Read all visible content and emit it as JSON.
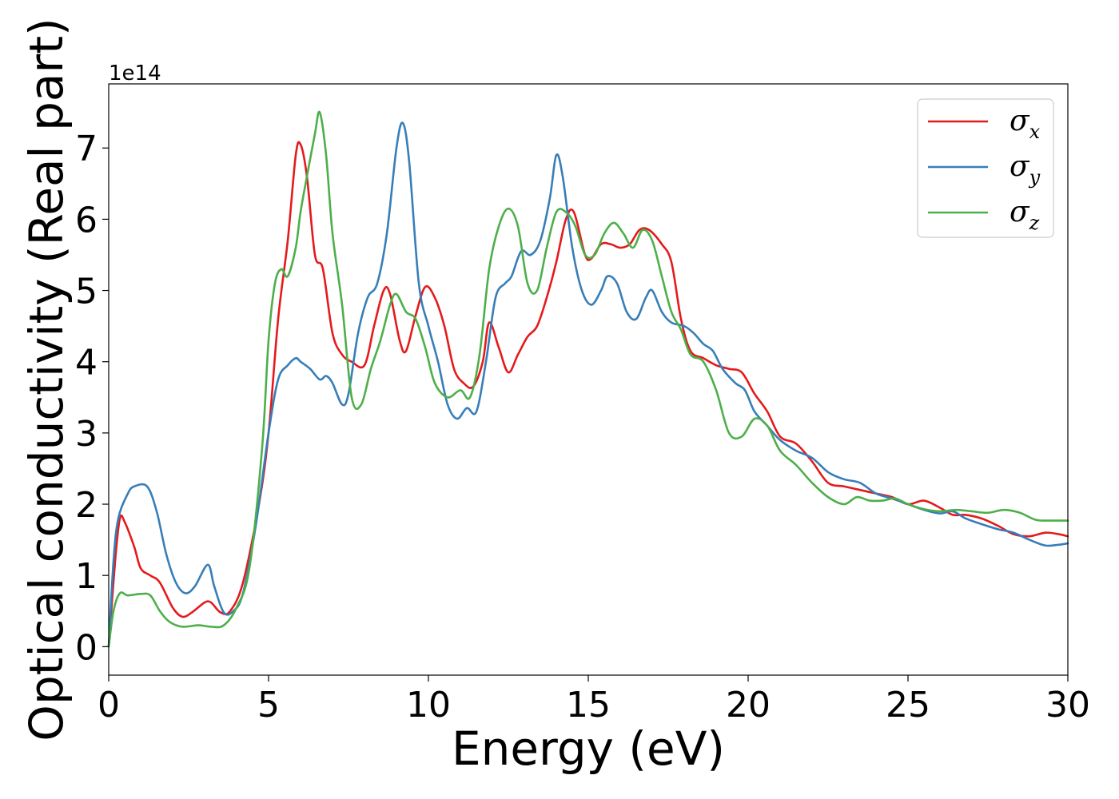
{
  "chart_data": {
    "type": "line",
    "title": "",
    "xlabel": "Energy (eV)",
    "ylabel": "Optical conductivity (Real part)",
    "y_offset_label": "1e14",
    "xlim": [
      0,
      30
    ],
    "ylim": [
      -0.4,
      7.9
    ],
    "x_ticks": [
      0,
      5,
      10,
      15,
      20,
      25,
      30
    ],
    "x_tick_labels": [
      "0",
      "5",
      "10",
      "15",
      "20",
      "25",
      "30"
    ],
    "y_ticks": [
      0,
      1,
      2,
      3,
      4,
      5,
      6,
      7
    ],
    "y_tick_labels": [
      "0",
      "1",
      "2",
      "3",
      "4",
      "5",
      "6",
      "7"
    ],
    "grid": false,
    "legend_position": "top-right",
    "series": [
      {
        "name": "σx",
        "legend_symbol": "σ",
        "legend_sub": "x",
        "color": "#e41a1c",
        "points": [
          [
            0,
            0
          ],
          [
            0.2,
            1.2
          ],
          [
            0.35,
            1.8
          ],
          [
            0.5,
            1.75
          ],
          [
            0.8,
            1.4
          ],
          [
            1.0,
            1.1
          ],
          [
            1.3,
            1.0
          ],
          [
            1.6,
            0.9
          ],
          [
            2.0,
            0.55
          ],
          [
            2.3,
            0.42
          ],
          [
            2.6,
            0.48
          ],
          [
            3.0,
            0.62
          ],
          [
            3.2,
            0.62
          ],
          [
            3.5,
            0.48
          ],
          [
            3.8,
            0.5
          ],
          [
            4.2,
            0.9
          ],
          [
            4.7,
            2.0
          ],
          [
            5.0,
            3.0
          ],
          [
            5.3,
            4.6
          ],
          [
            5.6,
            5.7
          ],
          [
            5.85,
            6.9
          ],
          [
            6.0,
            7.05
          ],
          [
            6.2,
            6.6
          ],
          [
            6.45,
            5.5
          ],
          [
            6.7,
            5.3
          ],
          [
            7.0,
            4.4
          ],
          [
            7.3,
            4.1
          ],
          [
            7.6,
            4.0
          ],
          [
            8.0,
            3.95
          ],
          [
            8.3,
            4.5
          ],
          [
            8.6,
            5.0
          ],
          [
            8.8,
            4.95
          ],
          [
            9.1,
            4.3
          ],
          [
            9.3,
            4.15
          ],
          [
            9.6,
            4.65
          ],
          [
            9.9,
            5.05
          ],
          [
            10.2,
            4.9
          ],
          [
            10.5,
            4.5
          ],
          [
            10.8,
            3.9
          ],
          [
            11.1,
            3.7
          ],
          [
            11.4,
            3.65
          ],
          [
            11.7,
            4.0
          ],
          [
            11.9,
            4.55
          ],
          [
            12.2,
            4.2
          ],
          [
            12.5,
            3.85
          ],
          [
            12.8,
            4.1
          ],
          [
            13.1,
            4.35
          ],
          [
            13.4,
            4.5
          ],
          [
            13.7,
            4.9
          ],
          [
            14.0,
            5.4
          ],
          [
            14.3,
            6.0
          ],
          [
            14.55,
            6.1
          ],
          [
            14.9,
            5.5
          ],
          [
            15.1,
            5.45
          ],
          [
            15.4,
            5.65
          ],
          [
            15.7,
            5.65
          ],
          [
            16.0,
            5.6
          ],
          [
            16.3,
            5.65
          ],
          [
            16.6,
            5.85
          ],
          [
            16.9,
            5.85
          ],
          [
            17.3,
            5.65
          ],
          [
            17.6,
            5.4
          ],
          [
            17.9,
            4.6
          ],
          [
            18.2,
            4.15
          ],
          [
            18.6,
            4.05
          ],
          [
            19.0,
            3.95
          ],
          [
            19.4,
            3.9
          ],
          [
            19.8,
            3.85
          ],
          [
            20.2,
            3.55
          ],
          [
            20.6,
            3.3
          ],
          [
            21.0,
            2.95
          ],
          [
            21.5,
            2.85
          ],
          [
            22.0,
            2.6
          ],
          [
            22.5,
            2.3
          ],
          [
            23.0,
            2.25
          ],
          [
            23.5,
            2.2
          ],
          [
            24.0,
            2.15
          ],
          [
            24.5,
            2.1
          ],
          [
            25.0,
            2.0
          ],
          [
            25.5,
            2.05
          ],
          [
            26.0,
            1.95
          ],
          [
            26.4,
            1.85
          ],
          [
            26.8,
            1.85
          ],
          [
            27.3,
            1.8
          ],
          [
            27.8,
            1.7
          ],
          [
            28.3,
            1.58
          ],
          [
            28.8,
            1.55
          ],
          [
            29.3,
            1.6
          ],
          [
            29.7,
            1.58
          ],
          [
            30.0,
            1.55
          ]
        ]
      },
      {
        "name": "σy",
        "legend_symbol": "σ",
        "legend_sub": "y",
        "color": "#377eb8",
        "points": [
          [
            0,
            0
          ],
          [
            0.15,
            1.2
          ],
          [
            0.3,
            1.8
          ],
          [
            0.6,
            2.15
          ],
          [
            0.8,
            2.25
          ],
          [
            1.2,
            2.25
          ],
          [
            1.5,
            1.9
          ],
          [
            1.8,
            1.3
          ],
          [
            2.1,
            0.9
          ],
          [
            2.4,
            0.75
          ],
          [
            2.7,
            0.85
          ],
          [
            3.1,
            1.15
          ],
          [
            3.3,
            0.85
          ],
          [
            3.6,
            0.48
          ],
          [
            3.9,
            0.5
          ],
          [
            4.2,
            0.75
          ],
          [
            4.6,
            1.7
          ],
          [
            5.0,
            3.0
          ],
          [
            5.3,
            3.75
          ],
          [
            5.6,
            3.95
          ],
          [
            5.85,
            4.05
          ],
          [
            6.0,
            4.0
          ],
          [
            6.3,
            3.9
          ],
          [
            6.6,
            3.75
          ],
          [
            6.8,
            3.8
          ],
          [
            7.0,
            3.7
          ],
          [
            7.3,
            3.4
          ],
          [
            7.5,
            3.55
          ],
          [
            7.8,
            4.4
          ],
          [
            8.1,
            4.9
          ],
          [
            8.4,
            5.1
          ],
          [
            8.7,
            5.8
          ],
          [
            9.0,
            7.0
          ],
          [
            9.2,
            7.35
          ],
          [
            9.4,
            6.8
          ],
          [
            9.7,
            5.1
          ],
          [
            10.0,
            4.5
          ],
          [
            10.3,
            4.0
          ],
          [
            10.6,
            3.4
          ],
          [
            10.9,
            3.2
          ],
          [
            11.2,
            3.35
          ],
          [
            11.5,
            3.3
          ],
          [
            11.8,
            4.0
          ],
          [
            12.1,
            4.9
          ],
          [
            12.4,
            5.1
          ],
          [
            12.6,
            5.2
          ],
          [
            12.9,
            5.55
          ],
          [
            13.2,
            5.5
          ],
          [
            13.5,
            5.7
          ],
          [
            13.8,
            6.3
          ],
          [
            14.0,
            6.9
          ],
          [
            14.2,
            6.6
          ],
          [
            14.5,
            5.6
          ],
          [
            14.8,
            5.0
          ],
          [
            15.1,
            4.8
          ],
          [
            15.4,
            5.0
          ],
          [
            15.6,
            5.2
          ],
          [
            15.9,
            5.1
          ],
          [
            16.2,
            4.7
          ],
          [
            16.5,
            4.6
          ],
          [
            16.8,
            4.9
          ],
          [
            17.0,
            5.0
          ],
          [
            17.3,
            4.7
          ],
          [
            17.6,
            4.55
          ],
          [
            18.0,
            4.5
          ],
          [
            18.3,
            4.4
          ],
          [
            18.6,
            4.25
          ],
          [
            18.9,
            4.15
          ],
          [
            19.2,
            3.9
          ],
          [
            19.6,
            3.7
          ],
          [
            19.9,
            3.6
          ],
          [
            20.2,
            3.3
          ],
          [
            20.6,
            3.1
          ],
          [
            21.0,
            2.9
          ],
          [
            21.5,
            2.75
          ],
          [
            22.0,
            2.65
          ],
          [
            22.5,
            2.45
          ],
          [
            23.0,
            2.35
          ],
          [
            23.5,
            2.3
          ],
          [
            24.0,
            2.15
          ],
          [
            24.5,
            2.08
          ],
          [
            25.0,
            2.0
          ],
          [
            25.5,
            1.92
          ],
          [
            26.0,
            1.87
          ],
          [
            26.4,
            1.9
          ],
          [
            26.8,
            1.8
          ],
          [
            27.3,
            1.72
          ],
          [
            27.8,
            1.65
          ],
          [
            28.3,
            1.6
          ],
          [
            28.8,
            1.5
          ],
          [
            29.3,
            1.42
          ],
          [
            29.7,
            1.43
          ],
          [
            30.0,
            1.45
          ]
        ]
      },
      {
        "name": "σz",
        "legend_symbol": "σ",
        "legend_sub": "z",
        "color": "#4daf4a",
        "points": [
          [
            0,
            0
          ],
          [
            0.15,
            0.5
          ],
          [
            0.35,
            0.75
          ],
          [
            0.6,
            0.72
          ],
          [
            1.0,
            0.74
          ],
          [
            1.3,
            0.72
          ],
          [
            1.6,
            0.5
          ],
          [
            1.9,
            0.35
          ],
          [
            2.3,
            0.28
          ],
          [
            2.8,
            0.3
          ],
          [
            3.2,
            0.28
          ],
          [
            3.6,
            0.3
          ],
          [
            4.0,
            0.55
          ],
          [
            4.4,
            1.1
          ],
          [
            4.8,
            2.8
          ],
          [
            5.0,
            4.3
          ],
          [
            5.2,
            5.1
          ],
          [
            5.4,
            5.3
          ],
          [
            5.6,
            5.2
          ],
          [
            5.85,
            5.6
          ],
          [
            6.0,
            6.1
          ],
          [
            6.2,
            6.6
          ],
          [
            6.45,
            7.2
          ],
          [
            6.6,
            7.5
          ],
          [
            6.8,
            6.9
          ],
          [
            7.0,
            5.8
          ],
          [
            7.3,
            4.8
          ],
          [
            7.6,
            3.5
          ],
          [
            7.9,
            3.4
          ],
          [
            8.2,
            3.9
          ],
          [
            8.5,
            4.3
          ],
          [
            8.8,
            4.8
          ],
          [
            9.0,
            4.95
          ],
          [
            9.3,
            4.7
          ],
          [
            9.6,
            4.6
          ],
          [
            9.9,
            4.2
          ],
          [
            10.2,
            3.7
          ],
          [
            10.6,
            3.5
          ],
          [
            11.0,
            3.6
          ],
          [
            11.3,
            3.5
          ],
          [
            11.6,
            4.1
          ],
          [
            11.9,
            5.3
          ],
          [
            12.2,
            5.9
          ],
          [
            12.5,
            6.15
          ],
          [
            12.8,
            5.9
          ],
          [
            13.1,
            5.1
          ],
          [
            13.4,
            5.0
          ],
          [
            13.7,
            5.6
          ],
          [
            14.0,
            6.1
          ],
          [
            14.3,
            6.1
          ],
          [
            14.6,
            5.9
          ],
          [
            14.9,
            5.5
          ],
          [
            15.2,
            5.5
          ],
          [
            15.5,
            5.8
          ],
          [
            15.8,
            5.95
          ],
          [
            16.1,
            5.8
          ],
          [
            16.4,
            5.6
          ],
          [
            16.7,
            5.85
          ],
          [
            17.0,
            5.7
          ],
          [
            17.3,
            5.2
          ],
          [
            17.6,
            4.7
          ],
          [
            17.9,
            4.45
          ],
          [
            18.2,
            4.1
          ],
          [
            18.6,
            4.0
          ],
          [
            19.0,
            3.6
          ],
          [
            19.4,
            3.0
          ],
          [
            19.8,
            2.95
          ],
          [
            20.2,
            3.2
          ],
          [
            20.6,
            3.1
          ],
          [
            21.0,
            2.75
          ],
          [
            21.5,
            2.55
          ],
          [
            22.0,
            2.3
          ],
          [
            22.5,
            2.1
          ],
          [
            23.0,
            2.0
          ],
          [
            23.4,
            2.1
          ],
          [
            23.8,
            2.05
          ],
          [
            24.2,
            2.05
          ],
          [
            24.6,
            2.08
          ],
          [
            25.0,
            2.0
          ],
          [
            25.5,
            1.93
          ],
          [
            26.0,
            1.9
          ],
          [
            26.5,
            1.92
          ],
          [
            27.0,
            1.9
          ],
          [
            27.5,
            1.88
          ],
          [
            28.0,
            1.92
          ],
          [
            28.5,
            1.88
          ],
          [
            29.0,
            1.78
          ],
          [
            29.5,
            1.77
          ],
          [
            30.0,
            1.77
          ]
        ]
      }
    ]
  }
}
